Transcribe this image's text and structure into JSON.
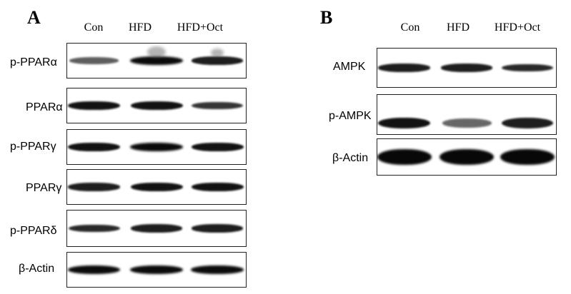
{
  "panel_a": {
    "letter": "A",
    "lanes": [
      "Con",
      "HFD",
      "HFD+Oct"
    ],
    "blots": [
      {
        "id": "p-ppara",
        "label": "p-PPARα",
        "band_intensity": [
          0.55,
          0.95,
          0.85
        ]
      },
      {
        "id": "ppara",
        "label": "PPARα",
        "band_intensity": [
          0.9,
          0.9,
          0.75
        ]
      },
      {
        "id": "p-pparg",
        "label": "p-PPARγ",
        "band_intensity": [
          0.9,
          0.95,
          0.9
        ]
      },
      {
        "id": "pparg",
        "label": "PPARγ",
        "band_intensity": [
          0.85,
          0.9,
          0.9
        ]
      },
      {
        "id": "p-ppard",
        "label": "p-PPARδ",
        "band_intensity": [
          0.8,
          0.85,
          0.85
        ]
      },
      {
        "id": "b-actin-a",
        "label": "β-Actin",
        "band_intensity": [
          0.95,
          0.95,
          0.95
        ]
      }
    ]
  },
  "panel_b": {
    "letter": "B",
    "lanes": [
      "Con",
      "HFD",
      "HFD+Oct"
    ],
    "blots": [
      {
        "id": "ampk",
        "label": "AMPK",
        "band_intensity": [
          0.85,
          0.85,
          0.8
        ]
      },
      {
        "id": "p-ampk",
        "label": "p-AMPK",
        "band_intensity": [
          0.9,
          0.5,
          0.85
        ]
      },
      {
        "id": "b-actin-b",
        "label": "β-Actin",
        "band_intensity": [
          1.0,
          1.0,
          1.0
        ]
      }
    ]
  }
}
